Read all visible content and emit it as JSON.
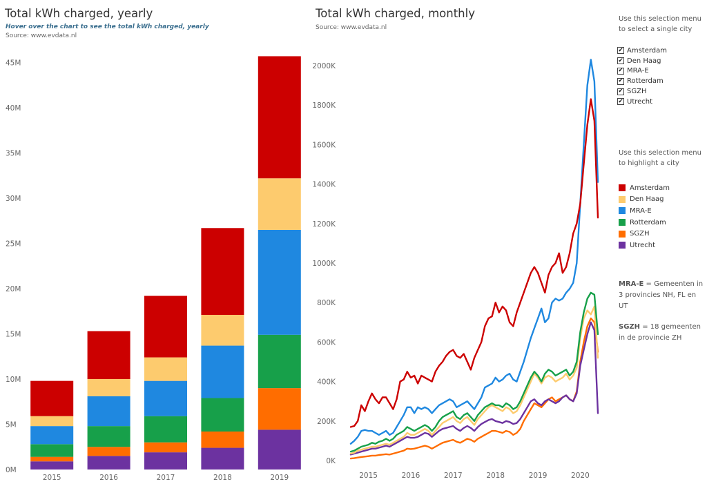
{
  "left_panel": {
    "title": "Total kWh charged, yearly",
    "hover_hint": "Hover over the chart to see the total kWh charged, yearly",
    "source": "Source: www.evdata.nl"
  },
  "right_panel": {
    "title": "Total kWh charged, monthly",
    "source": "Source: www.evdata.nl"
  },
  "filter": {
    "prompt": "Use this selection menu to select a single city",
    "items": [
      {
        "label": "Amsterdam",
        "checked": true
      },
      {
        "label": "Den Haag",
        "checked": true
      },
      {
        "label": "MRA-E",
        "checked": true
      },
      {
        "label": "Rotterdam",
        "checked": true
      },
      {
        "label": "SGZH",
        "checked": true
      },
      {
        "label": "Utrecht",
        "checked": true
      }
    ],
    "check_glyph": "✔"
  },
  "highlight": {
    "prompt": "Use this selection menu to highlight a city",
    "items": [
      {
        "label": "Amsterdam",
        "color": "#cc0000"
      },
      {
        "label": "Den Haag",
        "color": "#fdcb6e"
      },
      {
        "label": "MRA-E",
        "color": "#1f88e0"
      },
      {
        "label": "Rotterdam",
        "color": "#17a04a"
      },
      {
        "label": "SGZH",
        "color": "#ff6d00"
      },
      {
        "label": "Utrecht",
        "color": "#6c32a0"
      }
    ]
  },
  "notes": {
    "mrae_term": "MRA-E",
    "mrae_text": " = Gemeenten in 3 provincies NH, FL en UT",
    "sgzh_term": "SGZH",
    "sgzh_text": "  = 18 gemeenten in de provincie ZH"
  },
  "chart_data": [
    {
      "type": "bar",
      "stacked": true,
      "title": "Total kWh charged, yearly",
      "categories": [
        "2015",
        "2016",
        "2017",
        "2018",
        "2019"
      ],
      "series": [
        {
          "name": "Utrecht",
          "color": "#6c32a0",
          "values": [
            900000,
            1500000,
            1900000,
            2400000,
            4400000
          ]
        },
        {
          "name": "SGZH",
          "color": "#ff6d00",
          "values": [
            500000,
            1000000,
            1100000,
            1800000,
            4600000
          ]
        },
        {
          "name": "Rotterdam",
          "color": "#17a04a",
          "values": [
            1400000,
            2300000,
            2900000,
            3700000,
            5900000
          ]
        },
        {
          "name": "MRA-E",
          "color": "#1f88e0",
          "values": [
            2000000,
            3300000,
            3900000,
            5800000,
            11600000
          ]
        },
        {
          "name": "Den Haag",
          "color": "#fdcb6e",
          "values": [
            1100000,
            1900000,
            2600000,
            3400000,
            5700000
          ]
        },
        {
          "name": "Amsterdam",
          "color": "#cc0000",
          "values": [
            3900000,
            5300000,
            6800000,
            9600000,
            13500000
          ]
        }
      ],
      "yticks": [
        0,
        5000000,
        10000000,
        15000000,
        20000000,
        25000000,
        30000000,
        35000000,
        40000000,
        45000000
      ],
      "ytick_labels": [
        "0M",
        "5M",
        "10M",
        "15M",
        "20M",
        "25M",
        "30M",
        "35M",
        "40M",
        "45M"
      ],
      "ylim": [
        0,
        46000000
      ],
      "grid": false,
      "legend": "right"
    },
    {
      "type": "line",
      "title": "Total kWh charged, monthly",
      "x_start": "2014-08",
      "x_end": "2020-04",
      "x_ticks": [
        "2015",
        "2016",
        "2017",
        "2018",
        "2019",
        "2020"
      ],
      "yticks": [
        0,
        200000,
        400000,
        600000,
        800000,
        1000000,
        1200000,
        1400000,
        1600000,
        1800000,
        2000000
      ],
      "ytick_labels": [
        "0K",
        "200K",
        "400K",
        "600K",
        "800K",
        "1000K",
        "1200K",
        "1400K",
        "1600K",
        "1800K",
        "2000K"
      ],
      "ylim": [
        0,
        2040000
      ],
      "grid": false,
      "legend": "right",
      "series": [
        {
          "name": "Amsterdam",
          "color": "#cc0000",
          "values": [
            170000,
            175000,
            200000,
            280000,
            250000,
            300000,
            340000,
            310000,
            290000,
            320000,
            320000,
            290000,
            260000,
            310000,
            400000,
            410000,
            450000,
            420000,
            430000,
            390000,
            430000,
            420000,
            410000,
            400000,
            450000,
            480000,
            500000,
            530000,
            550000,
            560000,
            530000,
            520000,
            540000,
            500000,
            460000,
            520000,
            560000,
            600000,
            680000,
            720000,
            730000,
            800000,
            750000,
            780000,
            760000,
            700000,
            680000,
            750000,
            800000,
            850000,
            900000,
            950000,
            980000,
            950000,
            900000,
            850000,
            940000,
            980000,
            1000000,
            1050000,
            950000,
            980000,
            1050000,
            1150000,
            1200000,
            1300000,
            1500000,
            1700000,
            1830000,
            1720000,
            1230000
          ]
        },
        {
          "name": "MRA-E",
          "color": "#1f88e0",
          "values": [
            85000,
            100000,
            120000,
            150000,
            155000,
            150000,
            150000,
            140000,
            130000,
            140000,
            150000,
            130000,
            140000,
            170000,
            200000,
            230000,
            270000,
            270000,
            240000,
            270000,
            260000,
            270000,
            260000,
            240000,
            260000,
            280000,
            290000,
            300000,
            310000,
            300000,
            270000,
            280000,
            290000,
            300000,
            280000,
            260000,
            290000,
            320000,
            370000,
            380000,
            390000,
            420000,
            400000,
            410000,
            430000,
            440000,
            410000,
            400000,
            450000,
            500000,
            560000,
            620000,
            670000,
            720000,
            770000,
            700000,
            720000,
            800000,
            820000,
            810000,
            820000,
            850000,
            870000,
            900000,
            1000000,
            1300000,
            1600000,
            1900000,
            2030000,
            1920000,
            1410000
          ]
        },
        {
          "name": "Rotterdam",
          "color": "#17a04a",
          "values": [
            45000,
            50000,
            60000,
            70000,
            75000,
            80000,
            90000,
            85000,
            95000,
            100000,
            110000,
            100000,
            110000,
            130000,
            140000,
            150000,
            170000,
            160000,
            150000,
            160000,
            170000,
            180000,
            170000,
            150000,
            170000,
            200000,
            220000,
            230000,
            240000,
            250000,
            220000,
            210000,
            230000,
            240000,
            220000,
            200000,
            230000,
            250000,
            270000,
            280000,
            290000,
            280000,
            280000,
            270000,
            290000,
            280000,
            260000,
            270000,
            300000,
            340000,
            380000,
            420000,
            450000,
            430000,
            400000,
            440000,
            460000,
            450000,
            430000,
            440000,
            450000,
            460000,
            430000,
            450000,
            500000,
            650000,
            750000,
            820000,
            850000,
            840000,
            640000
          ]
        },
        {
          "name": "Den Haag",
          "color": "#fdcb6e",
          "values": [
            35000,
            40000,
            50000,
            55000,
            60000,
            65000,
            70000,
            70000,
            75000,
            80000,
            85000,
            80000,
            90000,
            100000,
            110000,
            120000,
            140000,
            130000,
            130000,
            140000,
            150000,
            160000,
            150000,
            130000,
            150000,
            170000,
            190000,
            200000,
            210000,
            220000,
            200000,
            190000,
            210000,
            220000,
            200000,
            180000,
            210000,
            230000,
            250000,
            270000,
            280000,
            270000,
            260000,
            250000,
            270000,
            260000,
            240000,
            250000,
            280000,
            320000,
            360000,
            400000,
            440000,
            420000,
            390000,
            420000,
            430000,
            420000,
            400000,
            410000,
            420000,
            440000,
            410000,
            430000,
            470000,
            620000,
            720000,
            760000,
            740000,
            780000,
            520000
          ]
        },
        {
          "name": "SGZH",
          "color": "#ff6d00",
          "values": [
            10000,
            12000,
            15000,
            18000,
            20000,
            22000,
            25000,
            25000,
            28000,
            30000,
            32000,
            30000,
            35000,
            40000,
            45000,
            50000,
            60000,
            58000,
            60000,
            65000,
            70000,
            75000,
            70000,
            60000,
            70000,
            80000,
            90000,
            95000,
            100000,
            105000,
            95000,
            90000,
            100000,
            110000,
            105000,
            95000,
            110000,
            120000,
            130000,
            140000,
            150000,
            150000,
            145000,
            140000,
            150000,
            145000,
            130000,
            140000,
            160000,
            200000,
            230000,
            260000,
            290000,
            280000,
            270000,
            290000,
            310000,
            320000,
            300000,
            310000,
            320000,
            330000,
            310000,
            300000,
            350000,
            500000,
            600000,
            680000,
            720000,
            700000,
            550000
          ]
        },
        {
          "name": "Utrecht",
          "color": "#6c32a0",
          "values": [
            30000,
            35000,
            40000,
            45000,
            50000,
            55000,
            60000,
            60000,
            65000,
            70000,
            75000,
            70000,
            80000,
            90000,
            100000,
            110000,
            120000,
            115000,
            115000,
            120000,
            130000,
            140000,
            135000,
            120000,
            135000,
            150000,
            160000,
            165000,
            170000,
            175000,
            160000,
            150000,
            165000,
            175000,
            165000,
            150000,
            170000,
            185000,
            195000,
            205000,
            210000,
            200000,
            195000,
            190000,
            200000,
            195000,
            185000,
            190000,
            210000,
            240000,
            270000,
            300000,
            310000,
            290000,
            280000,
            300000,
            310000,
            300000,
            290000,
            300000,
            320000,
            330000,
            310000,
            300000,
            340000,
            480000,
            560000,
            640000,
            700000,
            660000,
            240000
          ]
        }
      ]
    }
  ]
}
